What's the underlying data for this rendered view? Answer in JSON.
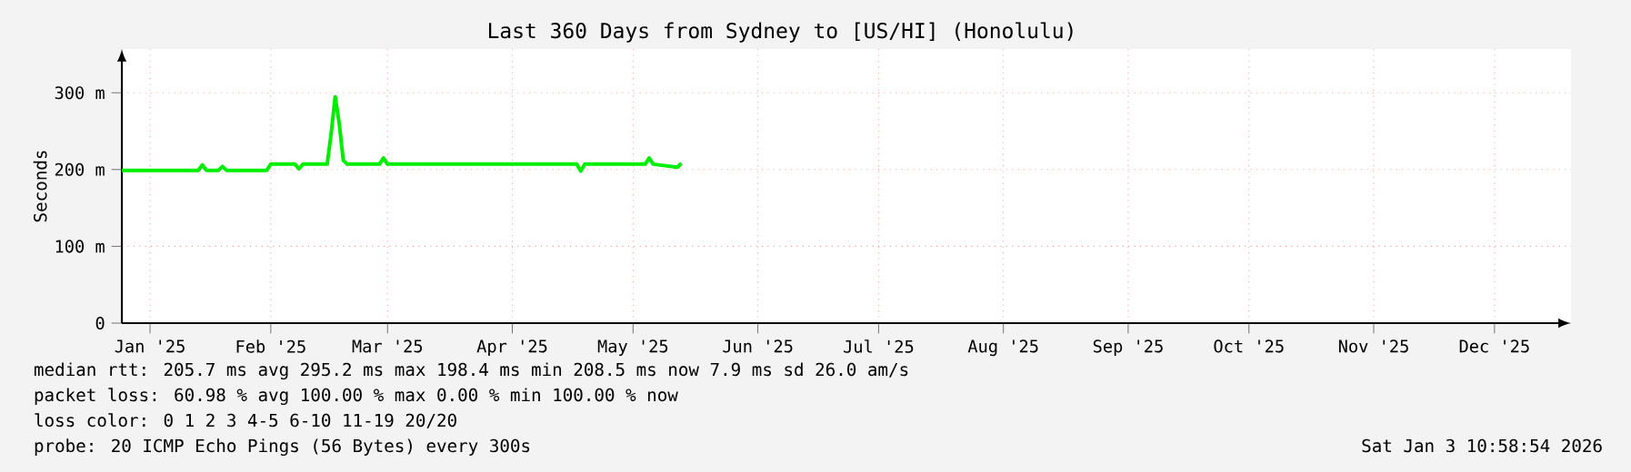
{
  "chart_data": {
    "type": "line",
    "title": "Last 360 Days from Sydney to [US/HI] (Honolulu)",
    "ylabel": "Seconds",
    "x": [
      "2025-01-09",
      "2025-01-28",
      "2025-01-29",
      "2025-01-30",
      "2025-02-02",
      "2025-02-03",
      "2025-02-04",
      "2025-02-14",
      "2025-02-15",
      "2025-02-21",
      "2025-02-22",
      "2025-02-23",
      "2025-03-01",
      "2025-03-02",
      "2025-03-03",
      "2025-03-04",
      "2025-03-05",
      "2025-03-06",
      "2025-03-14",
      "2025-03-15",
      "2025-03-16",
      "2025-05-02",
      "2025-05-03",
      "2025-05-04",
      "2025-05-19",
      "2025-05-20",
      "2025-05-21",
      "2025-05-27",
      "2025-05-28"
    ],
    "series": [
      {
        "color": "#00ee00",
        "values": [
          199,
          199,
          206,
          199,
          199,
          204,
          199,
          199,
          207,
          207,
          201,
          207,
          207,
          247,
          295,
          260,
          212,
          207,
          207,
          215,
          207,
          207,
          198,
          207,
          207,
          215,
          207,
          203,
          208
        ]
      }
    ],
    "xlim": [
      "2025-01-09",
      "2026-01-04"
    ],
    "xticks": [
      {
        "value": "2025-01-16",
        "label": "Jan '25"
      },
      {
        "value": "2025-02-15",
        "label": "Feb '25"
      },
      {
        "value": "2025-03-16",
        "label": "Mar '25"
      },
      {
        "value": "2025-04-16",
        "label": "Apr '25"
      },
      {
        "value": "2025-05-16",
        "label": "May '25"
      },
      {
        "value": "2025-06-16",
        "label": "Jun '25"
      },
      {
        "value": "2025-07-16",
        "label": "Jul '25"
      },
      {
        "value": "2025-08-16",
        "label": "Aug '25"
      },
      {
        "value": "2025-09-16",
        "label": "Sep '25"
      },
      {
        "value": "2025-10-16",
        "label": "Oct '25"
      },
      {
        "value": "2025-11-16",
        "label": "Nov '25"
      },
      {
        "value": "2025-12-16",
        "label": "Dec '25"
      }
    ],
    "ylim": [
      0,
      357
    ],
    "yticks": [
      0,
      {
        "value": 100,
        "label": "100 m"
      },
      {
        "value": 200,
        "label": "200 m"
      },
      {
        "value": 300,
        "label": "300 m"
      }
    ],
    "grid": true,
    "annotations": [
      "median rtt:  205.7 ms avg  295.2 ms max  198.4 ms min  208.5 ms now  7.9 ms sd  26.0   am/s",
      "packet loss: 60.98 % avg  100.00 % max  0.00 % min  100.00 % now",
      "loss color:  0  1  2  3  4-5  6-10  11-19  20/20",
      "probe:       20 ICMP Echo Pings (56 Bytes) every 300s",
      "Sat Jan  3 10:58:54 2026"
    ]
  }
}
